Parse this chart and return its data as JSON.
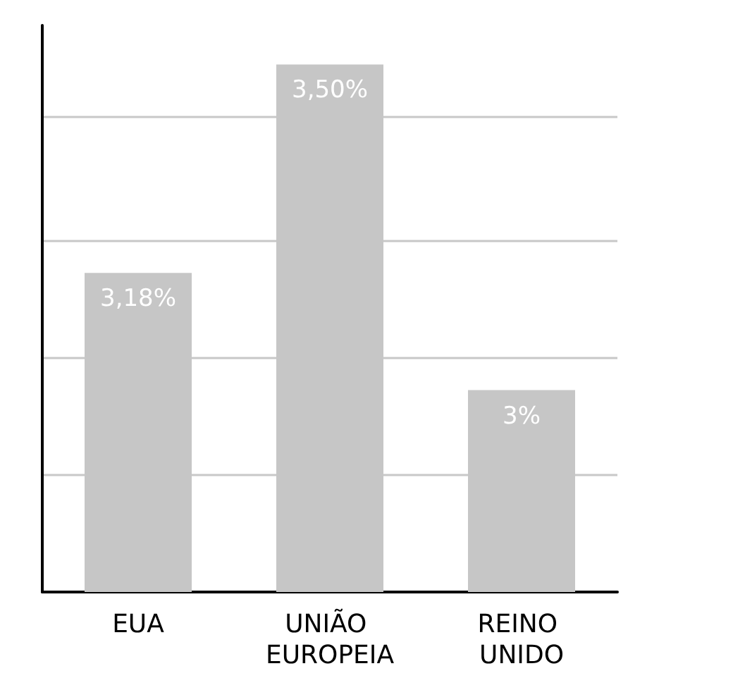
{
  "chart_data": {
    "type": "bar",
    "categories": [
      "EUA",
      "UNIÃO EUROPEIA",
      "REINO UNIDO"
    ],
    "values": [
      3.18,
      3.5,
      3
    ],
    "value_labels": [
      "3,18%",
      "3,50%",
      "3%"
    ],
    "color": "#c6c6c6",
    "ylim": [
      2.69,
      3.56
    ],
    "yticks": [
      {
        "value": 2.87,
        "label": null
      },
      {
        "value": 3.05,
        "label": null
      },
      {
        "value": 3.23,
        "label": null
      },
      {
        "value": 3.42,
        "label": null
      }
    ],
    "grid": "y",
    "tick_labels": "x"
  }
}
